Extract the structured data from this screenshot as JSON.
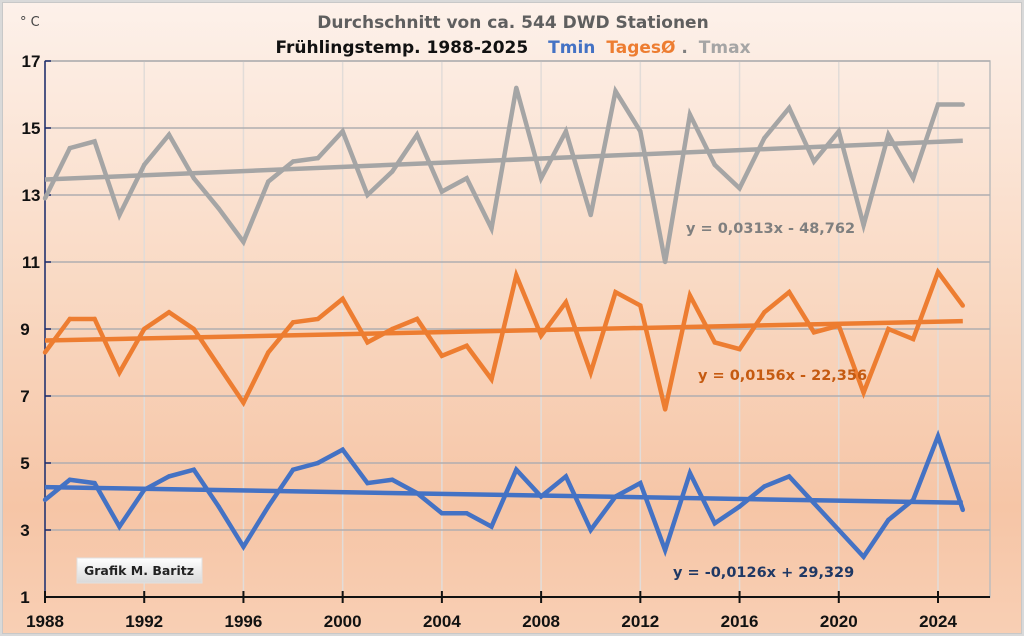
{
  "chart_data": {
    "type": "line",
    "title": "Durchschnitt von ca. 544 DWD Stationen",
    "subtitle_prefix": "Frühlingstemp. 1988-2025",
    "subtitle_legend": [
      {
        "text": "Tmin",
        "color": "#4472c4"
      },
      {
        "text": "TagesØ",
        "color": "#ed7d31"
      },
      {
        "text": ".",
        "color": "#7f7f7f"
      },
      {
        "text": "Tmax",
        "color": "#a5a5a5"
      }
    ],
    "ylabel": "° C",
    "xlabel": "",
    "xlim": [
      1988,
      2025.9
    ],
    "ylim": [
      1,
      17
    ],
    "xticks": [
      1988,
      1992,
      1996,
      2000,
      2004,
      2008,
      2012,
      2016,
      2020,
      2024
    ],
    "yticks": [
      1,
      3,
      5,
      7,
      9,
      11,
      13,
      15,
      17
    ],
    "grid": true,
    "x": [
      1988,
      1989,
      1990,
      1991,
      1992,
      1993,
      1994,
      1995,
      1996,
      1997,
      1998,
      1999,
      2000,
      2001,
      2002,
      2003,
      2004,
      2005,
      2006,
      2007,
      2008,
      2009,
      2010,
      2011,
      2012,
      2013,
      2014,
      2015,
      2016,
      2017,
      2018,
      2019,
      2020,
      2021,
      2022,
      2023,
      2024,
      2025
    ],
    "series": [
      {
        "name": "Tmax",
        "color": "#a5a5a5",
        "values": [
          12.9,
          14.4,
          14.6,
          12.4,
          13.9,
          14.8,
          13.5,
          12.6,
          11.6,
          13.4,
          14.0,
          14.1,
          14.9,
          13.0,
          13.7,
          14.8,
          13.1,
          13.5,
          12.0,
          16.2,
          13.5,
          14.9,
          12.4,
          16.1,
          14.9,
          11.0,
          15.4,
          13.9,
          13.2,
          14.7,
          15.6,
          14.0,
          14.9,
          12.1,
          14.8,
          13.5,
          15.7,
          15.7
        ],
        "trend": {
          "slope": 0.0313,
          "intercept": -48.762,
          "label": "y = 0,0313x - 48,762",
          "label_color": "#7f7f7f"
        }
      },
      {
        "name": "TagesØ",
        "color": "#ed7d31",
        "values": [
          8.3,
          9.3,
          9.3,
          7.7,
          9.0,
          9.5,
          9.0,
          7.9,
          6.8,
          8.3,
          9.2,
          9.3,
          9.9,
          8.6,
          9.0,
          9.3,
          8.2,
          8.5,
          7.5,
          10.6,
          8.8,
          9.8,
          7.7,
          10.1,
          9.7,
          6.6,
          10.0,
          8.6,
          8.4,
          9.5,
          10.1,
          8.9,
          9.1,
          7.1,
          9.0,
          8.7,
          10.7,
          9.7
        ],
        "trend": {
          "slope": 0.0156,
          "intercept": -22.356,
          "label": "y = 0,0156x - 22,356",
          "label_color": "#c55a11"
        }
      },
      {
        "name": "Tmin",
        "color": "#4472c4",
        "values": [
          3.9,
          4.5,
          4.4,
          3.1,
          4.2,
          4.6,
          4.8,
          3.7,
          2.5,
          3.7,
          4.8,
          5.0,
          5.4,
          4.4,
          4.5,
          4.1,
          3.5,
          3.5,
          3.1,
          4.8,
          4.0,
          4.6,
          3.0,
          4.0,
          4.4,
          2.4,
          4.7,
          3.2,
          3.7,
          4.3,
          4.6,
          3.8,
          3.0,
          2.2,
          3.3,
          3.9,
          5.8,
          3.6
        ],
        "trend": {
          "slope": -0.0126,
          "intercept": 29.329,
          "label": "y = -0,0126x + 29,329",
          "label_color": "#1f3864"
        }
      }
    ],
    "trend_x_range": [
      1988,
      2025
    ]
  },
  "watermark": "Grafik M. Baritz"
}
